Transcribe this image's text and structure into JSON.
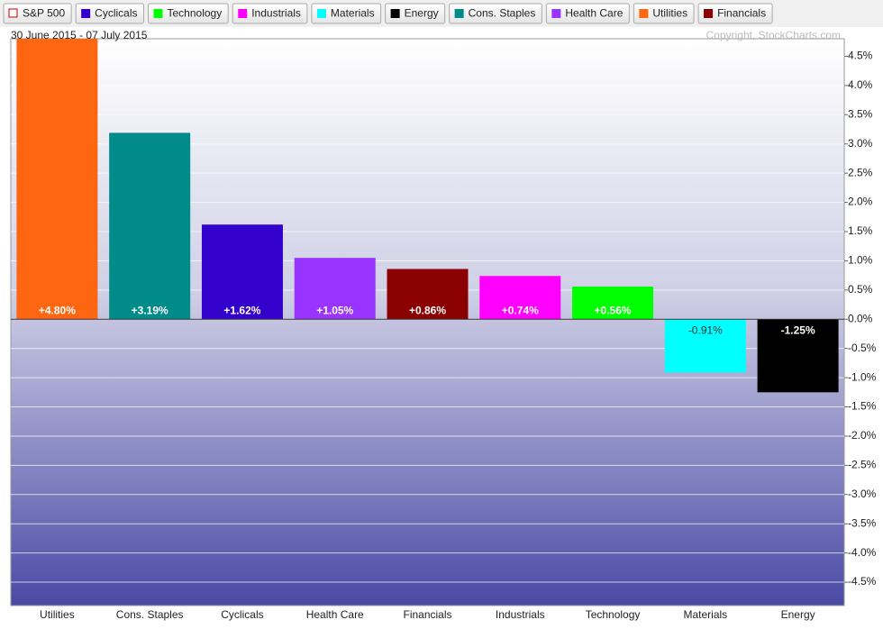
{
  "chart_data": {
    "type": "bar",
    "subtitle": "30 June 2015 - 07 July 2015",
    "annotation": "Copyright, StockCharts.com",
    "legend": [
      {
        "name": "S&P 500",
        "color": "#cc0000",
        "hollow": true
      },
      {
        "name": "Cyclicals",
        "color": "#3300cc"
      },
      {
        "name": "Technology",
        "color": "#00ff00"
      },
      {
        "name": "Industrials",
        "color": "#ff00ff"
      },
      {
        "name": "Materials",
        "color": "#00ffff"
      },
      {
        "name": "Energy",
        "color": "#000000"
      },
      {
        "name": "Cons. Staples",
        "color": "#008b8b"
      },
      {
        "name": "Health Care",
        "color": "#9933ff"
      },
      {
        "name": "Utilities",
        "color": "#ff6611"
      },
      {
        "name": "Financials",
        "color": "#8b0000"
      }
    ],
    "categories": [
      "Utilities",
      "Cons. Staples",
      "Cyclicals",
      "Health Care",
      "Financials",
      "Industrials",
      "Technology",
      "Materials",
      "Energy"
    ],
    "values": [
      4.8,
      3.19,
      1.62,
      1.05,
      0.86,
      0.74,
      0.56,
      -0.91,
      -1.25
    ],
    "value_labels": [
      "+4.80%",
      "+3.19%",
      "+1.62%",
      "+1.05%",
      "+0.86%",
      "+0.74%",
      "+0.56%",
      "-0.91%",
      "-1.25%"
    ],
    "colors": [
      "#ff6611",
      "#008b8b",
      "#3300cc",
      "#9933ff",
      "#8b0000",
      "#ff00ff",
      "#00ff00",
      "#00ffff",
      "#000000"
    ],
    "ylim": [
      -4.9,
      4.8
    ],
    "yticks": [
      {
        "value": 4.5,
        "label": "4.5%"
      },
      {
        "value": 4,
        "label": "4.0%"
      },
      {
        "value": 3.5,
        "label": "3.5%"
      },
      {
        "value": 3,
        "label": "3.0%"
      },
      {
        "value": 2.5,
        "label": "2.5%"
      },
      {
        "value": 2,
        "label": "2.0%"
      },
      {
        "value": 1.5,
        "label": "1.5%"
      },
      {
        "value": 1,
        "label": "1.0%"
      },
      {
        "value": 0.5,
        "label": "0.5%"
      },
      {
        "value": 0,
        "label": "0.0%"
      },
      {
        "value": -0.5,
        "label": "-0.5%"
      },
      {
        "value": -1,
        "label": "-1.0%"
      },
      {
        "value": -1.5,
        "label": "-1.5%"
      },
      {
        "value": -2,
        "label": "-2.0%"
      },
      {
        "value": -2.5,
        "label": "-2.5%"
      },
      {
        "value": -3,
        "label": "-3.0%"
      },
      {
        "value": -3.5,
        "label": "-3.5%"
      },
      {
        "value": -4,
        "label": "-4.0%"
      },
      {
        "value": -4.5,
        "label": "-4.5%"
      }
    ],
    "grid": true,
    "axis_side": "right"
  }
}
